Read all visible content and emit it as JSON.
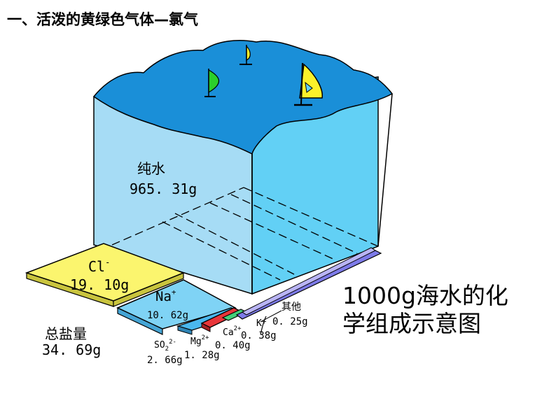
{
  "title": "一、活泼的黄绿色气体—氯气",
  "colors": {
    "water_top": "#1a8fd8",
    "water_front": "#a6dcf5",
    "water_side": "#62d0f5",
    "cl_slab": "#fbf56e",
    "na_slab": "#7fd3f5",
    "so4_slab": "#4ab8ef",
    "mg_slab": "#e8363a",
    "ca_slab": "#44d07a",
    "k_slab": "#7d7ae8",
    "other_slab": "#b9b4f5",
    "sail_green": "#2bcf2b",
    "sail_yellow": "#fbf12a"
  },
  "labels": {
    "water_name": "纯水",
    "water_mass": "965. 31g",
    "cl_name": "Cl",
    "cl_sup": "-",
    "cl_mass": "19. 10g",
    "na_name": "Na",
    "na_sup": "+",
    "na_mass": "10. 62g",
    "so4_name": "SO",
    "so4_sub": "2",
    "so4_sup": "2-",
    "so4_mass": "2. 66g",
    "mg_name": "Mg",
    "mg_sup": "2+",
    "mg_mass": "1. 28g",
    "ca_name": "Ca",
    "ca_sup": "2+",
    "ca_mass": "0. 40g",
    "k_name": "K",
    "k_sup": "+",
    "k_mass": "0. 38g",
    "other_name": "其他",
    "other_mass": "0. 25g",
    "total_name": "总盐量",
    "total_mass": "34. 69g",
    "caption_line1": "1000g海水的化",
    "caption_line2": "学组成示意图"
  }
}
